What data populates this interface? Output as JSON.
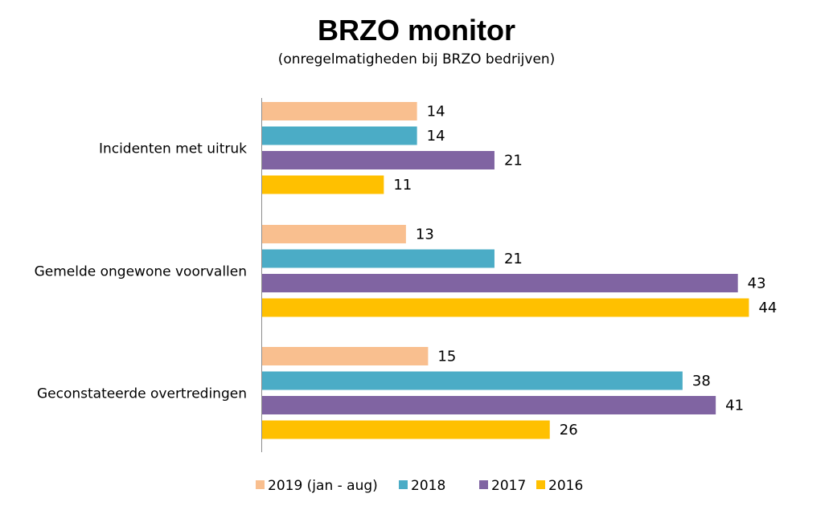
{
  "chart_data": {
    "type": "bar",
    "orientation": "horizontal",
    "title": "BRZO monitor",
    "subtitle": "(onregelmatigheden bij BRZO bedrijven)",
    "categories": [
      "Incidenten met uitruk",
      "Gemelde ongewone voorvallen",
      "Geconstateerde overtredingen"
    ],
    "series": [
      {
        "name": "2019 (jan - aug)",
        "color": "#F9BF8F",
        "values": [
          14,
          13,
          15
        ]
      },
      {
        "name": "2018",
        "color": "#4BACC6",
        "values": [
          14,
          21,
          38
        ]
      },
      {
        "name": "2017",
        "color": "#8064A2",
        "values": [
          21,
          43,
          41
        ]
      },
      {
        "name": "2016",
        "color": "#FFC000",
        "values": [
          11,
          44,
          26
        ]
      }
    ],
    "xlim": [
      0,
      50
    ],
    "grid": false,
    "data_labels": true,
    "legend_position": "bottom"
  }
}
